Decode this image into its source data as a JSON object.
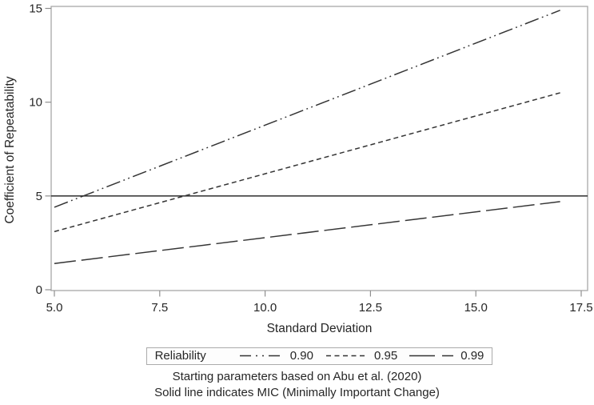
{
  "chart_data": {
    "type": "line",
    "title": "",
    "xlabel": "Standard Deviation",
    "ylabel": "Coefficient of Repeatability",
    "xticks": [
      5.0,
      7.5,
      10.0,
      12.5,
      15.0,
      17.5
    ],
    "xtick_labels": [
      "5.0",
      "7.5",
      "10.0",
      "12.5",
      "15.0",
      "17.5"
    ],
    "yticks": [
      0,
      5,
      10,
      15
    ],
    "ytick_labels": [
      "0",
      "5",
      "10",
      "15"
    ],
    "xlim": [
      4.9,
      17.65
    ],
    "ylim": [
      -0.05,
      15.1
    ],
    "grid": false,
    "series": [
      {
        "name": "0.90",
        "style": "dash-dot-dot",
        "x": [
          5,
          17
        ],
        "y": [
          4.4,
          14.9
        ]
      },
      {
        "name": "0.95",
        "style": "short-dash",
        "x": [
          5,
          17
        ],
        "y": [
          3.1,
          10.5
        ]
      },
      {
        "name": "0.99",
        "style": "long-dash",
        "x": [
          5,
          17
        ],
        "y": [
          1.4,
          4.7
        ]
      }
    ],
    "reference_line": {
      "y": 5,
      "style": "solid",
      "label": "MIC"
    },
    "legend": {
      "title": "Reliability",
      "position": "bottom",
      "entries": [
        {
          "label": "0.90",
          "style": "dash-dot-dot"
        },
        {
          "label": "0.95",
          "style": "short-dash"
        },
        {
          "label": "0.99",
          "style": "long-dash"
        }
      ]
    },
    "footnotes": [
      "Starting parameters based on Abu et al. (2020)",
      "Solid line indicates MIC (Minimally Important Change)"
    ]
  },
  "colors": {
    "background": "#ffffff",
    "series_line": "#343434",
    "reference_line": "#3d3d3d",
    "axis_border": "#a8a8a8",
    "tick": "#8f8f8f",
    "text": "#262626",
    "legend_border": "#ababab"
  }
}
